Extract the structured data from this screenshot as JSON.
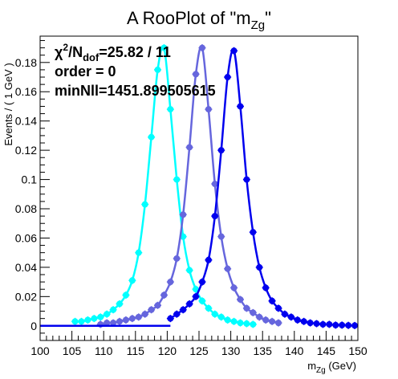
{
  "chart_data": {
    "type": "line",
    "title": {
      "main": "A RooPlot of \"m",
      "sub": "Zg",
      "tail": "\""
    },
    "xlabel": {
      "main": "m",
      "sub": "Zg",
      "tail": " (GeV)"
    },
    "ylabel": "Events / ( 1 GeV )",
    "xlim": [
      100,
      150
    ],
    "ylim": [
      -0.01,
      0.198
    ],
    "x_ticks": [
      100,
      105,
      110,
      115,
      120,
      125,
      130,
      135,
      140,
      145,
      150
    ],
    "x_tick_labels": [
      "100",
      "105",
      "110",
      "115",
      "120",
      "125",
      "130",
      "135",
      "140",
      "145",
      "150"
    ],
    "y_ticks": [
      0,
      0.02,
      0.04,
      0.06,
      0.08,
      0.1,
      0.12,
      0.14,
      0.16,
      0.18
    ],
    "y_tick_labels": [
      "0",
      "0.02",
      "0.04",
      "0.06",
      "0.08",
      "0.1",
      "0.12",
      "0.14",
      "0.16",
      "0.18"
    ],
    "grid": false,
    "annotations": {
      "chi2_main": "χ",
      "chi2_sup": "2",
      "chi2_mid": "/N",
      "chi2_sub": "dof",
      "chi2_val": "=25.82 / 11",
      "order": "order = 0",
      "minnll": "minNll=1451.899505615"
    },
    "series": [
      {
        "color": "#00ffff",
        "x": [
          105.5,
          106.5,
          107.5,
          108.5,
          109.5,
          110.5,
          111.5,
          112.5,
          113.5,
          114.5,
          115.5,
          116.5,
          117.5,
          118.5,
          119.5,
          120.5,
          121.5,
          122.5,
          123.5,
          124.5,
          125.5,
          126.5,
          127.5,
          128.5,
          129.5,
          130.5,
          131.5,
          132.5,
          133.5
        ],
        "y": [
          0.003,
          0.003,
          0.004,
          0.005,
          0.006,
          0.008,
          0.011,
          0.015,
          0.021,
          0.031,
          0.05,
          0.083,
          0.129,
          0.175,
          0.19,
          0.148,
          0.1,
          0.061,
          0.038,
          0.025,
          0.017,
          0.012,
          0.008,
          0.006,
          0.004,
          0.003,
          0.002,
          0.0015,
          0.001
        ]
      },
      {
        "color": "#6666dd",
        "x": [
          109.5,
          110.5,
          111.5,
          112.5,
          113.5,
          114.5,
          115.5,
          116.5,
          117.5,
          118.5,
          119.5,
          120.5,
          121.5,
          122.5,
          123.5,
          124.5,
          125.5,
          126.5,
          127.5,
          128.5,
          129.5,
          130.5,
          131.5,
          132.5,
          133.5,
          134.5,
          135.5,
          136.5,
          137.5
        ],
        "y": [
          0.001,
          0.002,
          0.002,
          0.003,
          0.004,
          0.005,
          0.006,
          0.008,
          0.011,
          0.014,
          0.021,
          0.03,
          0.046,
          0.076,
          0.122,
          0.172,
          0.19,
          0.148,
          0.097,
          0.061,
          0.039,
          0.026,
          0.018,
          0.012,
          0.009,
          0.006,
          0.004,
          0.003,
          0.002
        ]
      },
      {
        "color": "#0000ee",
        "x": [
          120.5,
          121.5,
          122.5,
          123.5,
          124.5,
          125.5,
          126.5,
          127.5,
          128.5,
          129.5,
          130.5,
          131.5,
          132.5,
          133.5,
          134.5,
          135.5,
          136.5,
          137.5,
          138.5,
          139.5,
          140.5,
          141.5,
          142.5,
          143.5,
          144.5,
          145.5,
          146.5,
          147.5,
          148.5,
          149.5
        ],
        "y": [
          0.005,
          0.008,
          0.011,
          0.015,
          0.02,
          0.03,
          0.045,
          0.075,
          0.12,
          0.17,
          0.188,
          0.15,
          0.1,
          0.064,
          0.04,
          0.026,
          0.017,
          0.012,
          0.008,
          0.006,
          0.004,
          0.003,
          0.002,
          0.0015,
          0.001,
          0.001,
          0.0005,
          0.0005,
          0.0003,
          0.0002
        ]
      }
    ]
  }
}
